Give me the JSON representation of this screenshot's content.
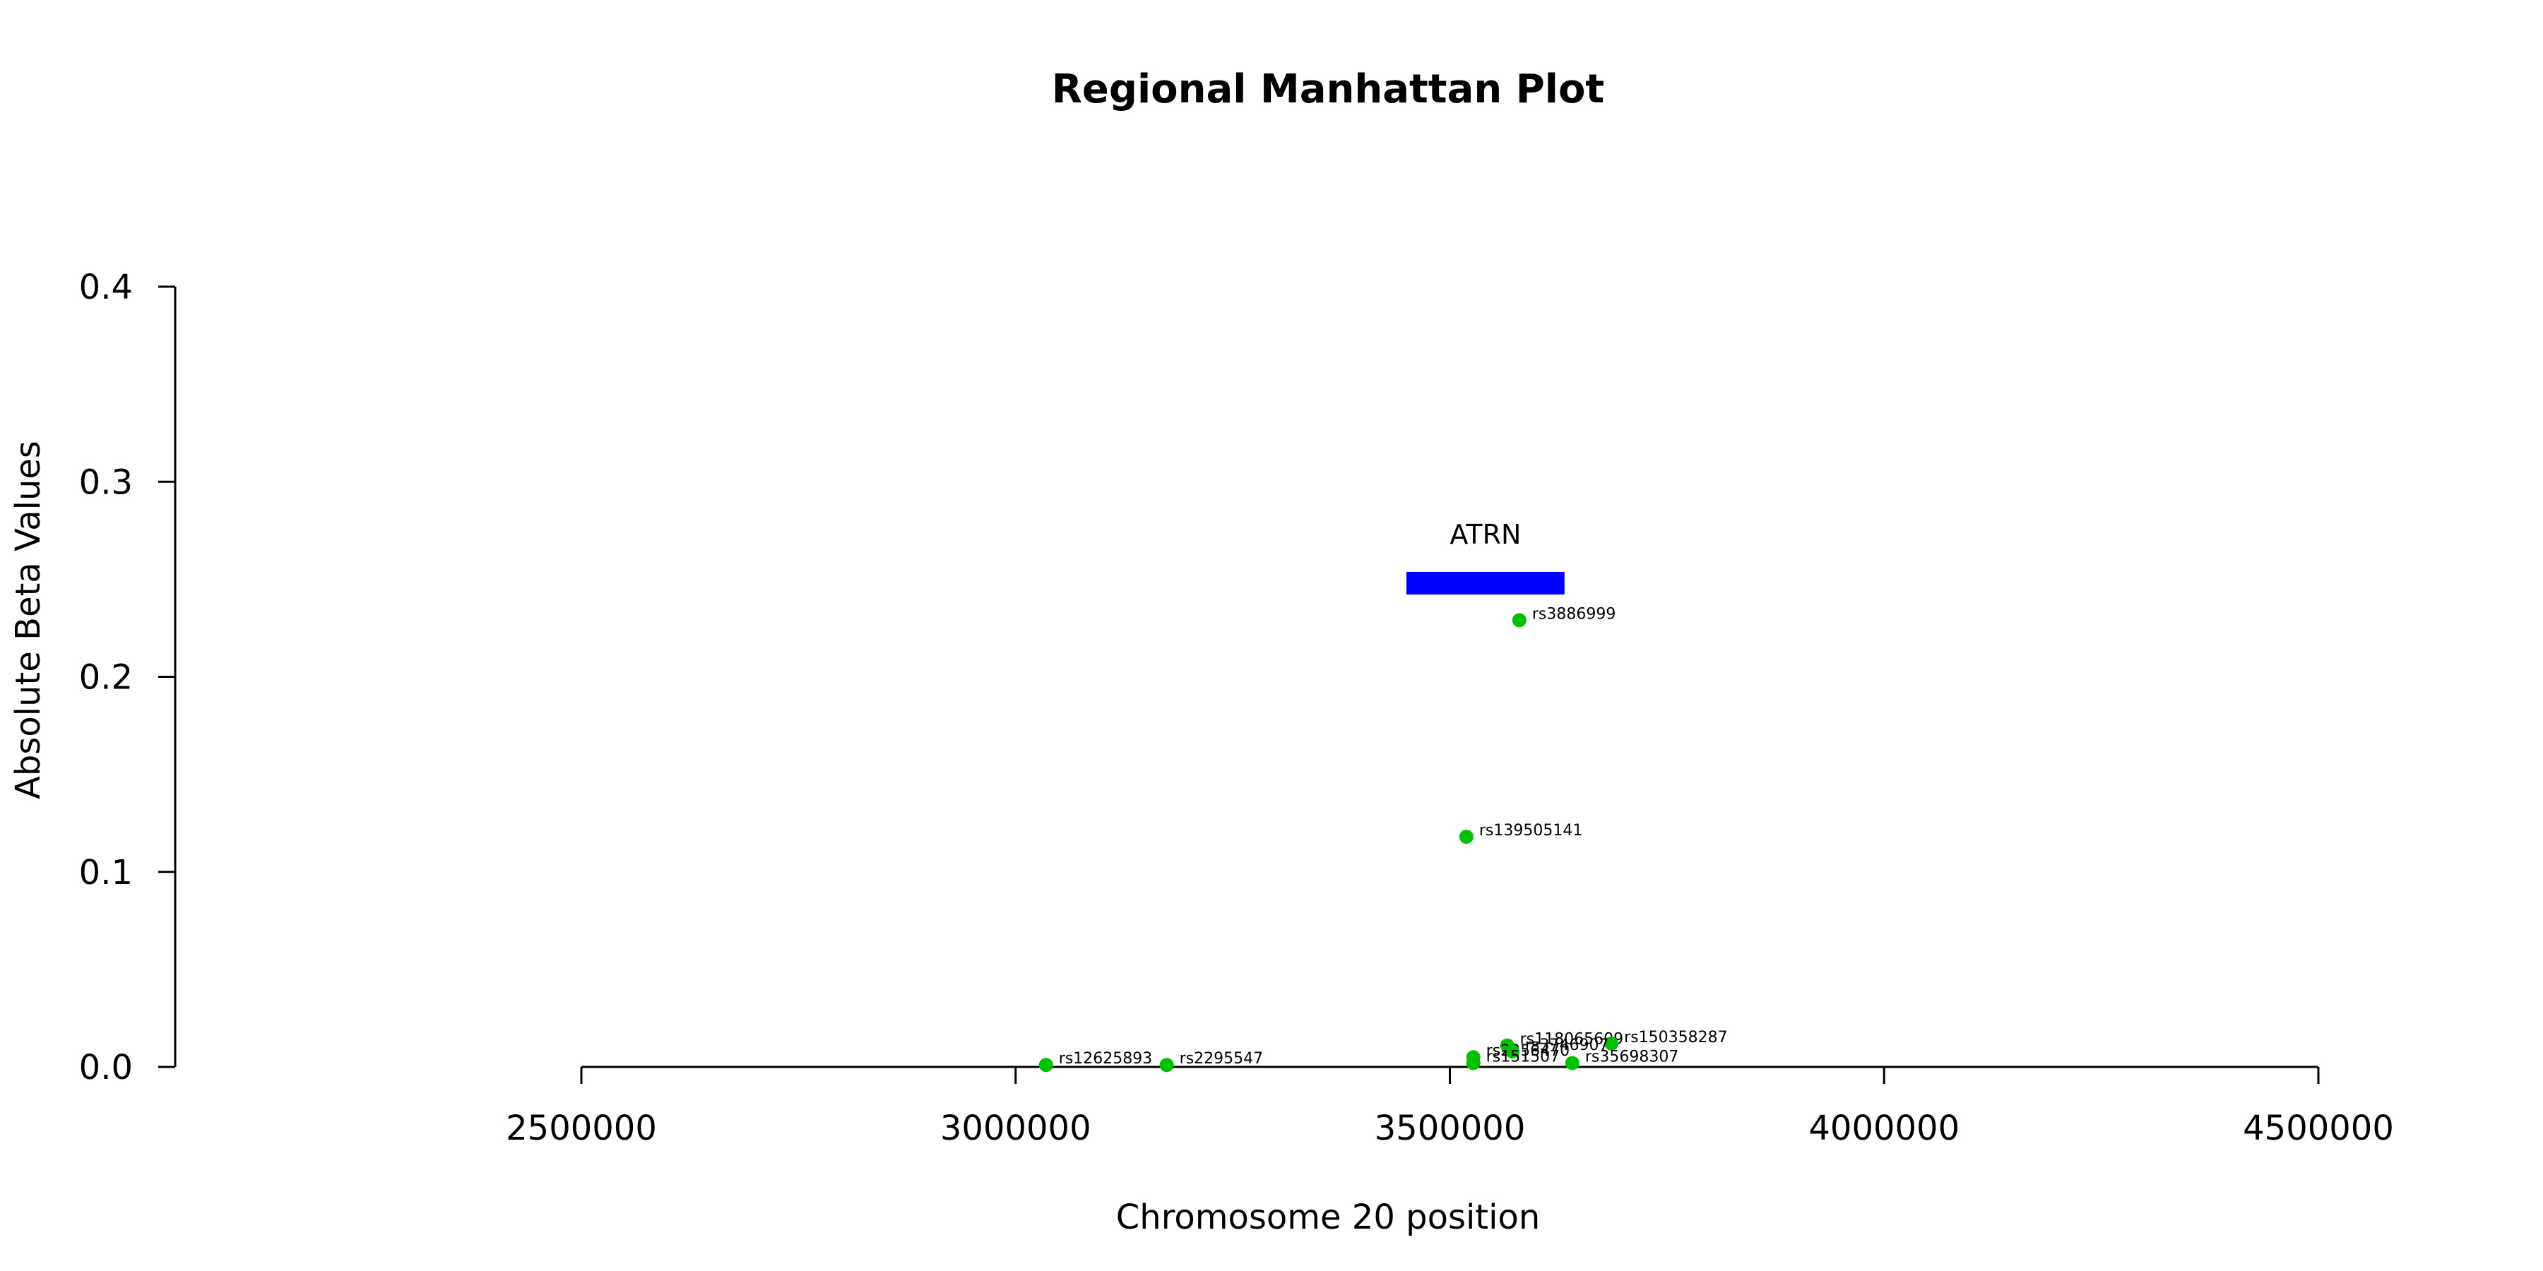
{
  "chart_data": {
    "type": "scatter",
    "title": "Regional Manhattan Plot",
    "xlabel": "Chromosome 20 position",
    "ylabel": "Absolute Beta Values",
    "xlim": [
      2500000,
      4500000
    ],
    "ylim": [
      0,
      0.4
    ],
    "x_ticks": [
      2500000,
      3000000,
      3500000,
      4000000,
      4500000
    ],
    "y_ticks": [
      0.0,
      0.1,
      0.2,
      0.3,
      0.4
    ],
    "x_tick_labels": [
      "2500000",
      "3000000",
      "3500000",
      "4000000",
      "4500000"
    ],
    "y_tick_labels": [
      "0.0",
      "0.1",
      "0.2",
      "0.3",
      "0.4"
    ],
    "grid": false,
    "point_color": "#00C000",
    "gene": {
      "name": "ATRN",
      "start": 3450000,
      "end": 3632000,
      "value": 0.248,
      "color": "#0000FF"
    },
    "points": [
      {
        "snp": "rs3886999",
        "x": 3580000,
        "y": 0.229
      },
      {
        "snp": "rs139505141",
        "x": 3519000,
        "y": 0.118
      },
      {
        "snp": "rs118065609",
        "x": 3566000,
        "y": 0.011
      },
      {
        "snp": "rs150358287",
        "x": 3686000,
        "y": 0.012
      },
      {
        "snp": "rs2256470",
        "x": 3527000,
        "y": 0.005
      },
      {
        "snp": "rs3746907",
        "x": 3572000,
        "y": 0.008
      },
      {
        "snp": "rs151507",
        "x": 3527000,
        "y": 0.002
      },
      {
        "snp": "rs35698307",
        "x": 3641000,
        "y": 0.002
      },
      {
        "snp": "rs12625893",
        "x": 3035000,
        "y": 0.001
      },
      {
        "snp": "rs2295547",
        "x": 3174000,
        "y": 0.001
      }
    ]
  }
}
